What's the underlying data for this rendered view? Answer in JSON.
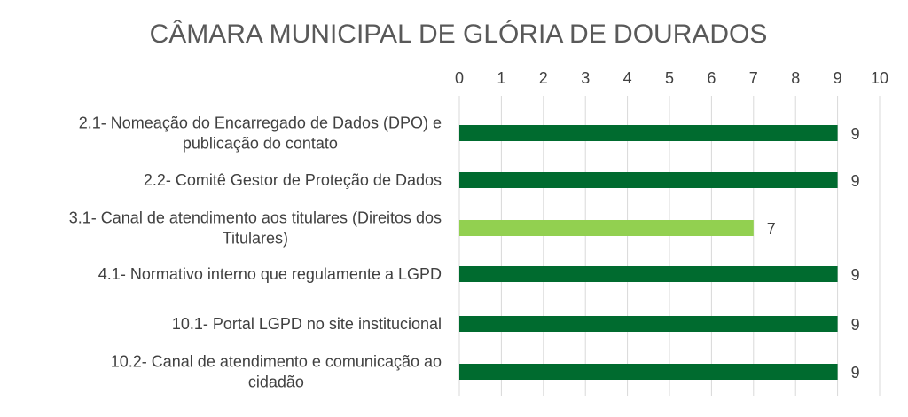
{
  "chart_data": {
    "type": "bar",
    "orientation": "horizontal",
    "title": "CÂMARA MUNICIPAL DE GLÓRIA DE DOURADOS",
    "xlim": [
      0,
      10
    ],
    "x_ticks": [
      0,
      1,
      2,
      3,
      4,
      5,
      6,
      7,
      8,
      9,
      10
    ],
    "x_axis_position": "top",
    "grid": true,
    "categories": [
      [
        "2.1- Nomeação do Encarregado de Dados (DPO) e",
        "publicação do contato"
      ],
      [
        "2.2- Comitê Gestor de Proteção de Dados"
      ],
      [
        "3.1- Canal de atendimento aos titulares (Direitos dos",
        "Titulares)"
      ],
      [
        "4.1- Normativo interno que regulamente a LGPD"
      ],
      [
        "10.1- Portal LGPD no site institucional"
      ],
      [
        "10.2- Canal de atendimento e comunicação ao",
        "cidadão"
      ]
    ],
    "values": [
      9,
      9,
      7,
      9,
      9,
      9
    ],
    "data_labels": [
      "9",
      "9",
      "7",
      "9",
      "9",
      "9"
    ],
    "colors": [
      "#006b2f",
      "#006b2f",
      "#92d050",
      "#006b2f",
      "#006b2f",
      "#006b2f"
    ]
  }
}
